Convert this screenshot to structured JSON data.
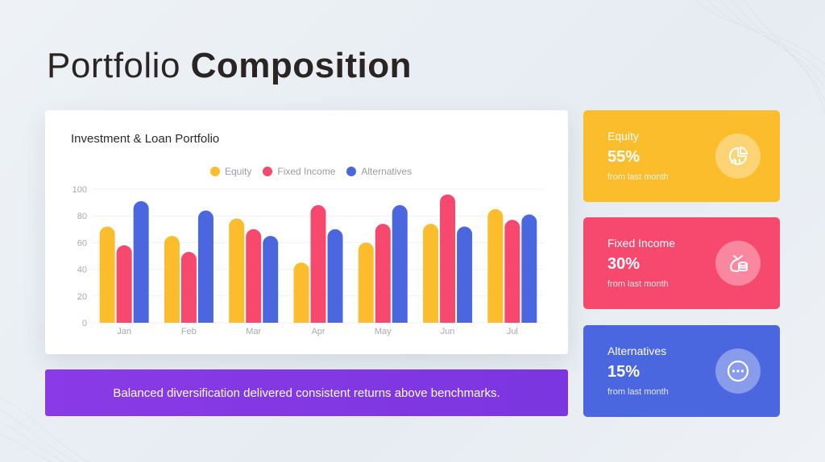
{
  "page": {
    "title_light": "Portfolio",
    "title_bold": "Composition"
  },
  "chart_data": {
    "type": "bar",
    "title": "Investment & Loan Portfolio",
    "categories": [
      "Jan",
      "Feb",
      "Mar",
      "Apr",
      "May",
      "Jun",
      "Jul"
    ],
    "series": [
      {
        "name": "Equity",
        "color": "#fbbd2c",
        "values": [
          72,
          65,
          78,
          45,
          60,
          74,
          85
        ]
      },
      {
        "name": "Fixed Income",
        "color": "#f7486e",
        "values": [
          58,
          53,
          70,
          88,
          74,
          96,
          77
        ]
      },
      {
        "name": "Alternatives",
        "color": "#4b67e0",
        "values": [
          91,
          84,
          65,
          70,
          88,
          72,
          81
        ]
      }
    ],
    "yticks": [
      0,
      20,
      40,
      60,
      80,
      100
    ],
    "ylim": [
      0,
      100
    ],
    "grid": true,
    "legend_position": "top-center"
  },
  "banner": {
    "text": "Balanced diversification delivered consistent returns above benchmarks.",
    "color": "#8a3ae6"
  },
  "stats": [
    {
      "label": "Equity",
      "value": "55%",
      "sub": "from last month",
      "color": "#fbbd2c",
      "icon": "pie-chart-icon"
    },
    {
      "label": "Fixed Income",
      "value": "30%",
      "sub": "from last month",
      "color": "#f7486e",
      "icon": "money-bag-icon"
    },
    {
      "label": "Alternatives",
      "value": "15%",
      "sub": "from last month",
      "color": "#4b67e0",
      "icon": "more-dots-icon"
    }
  ]
}
